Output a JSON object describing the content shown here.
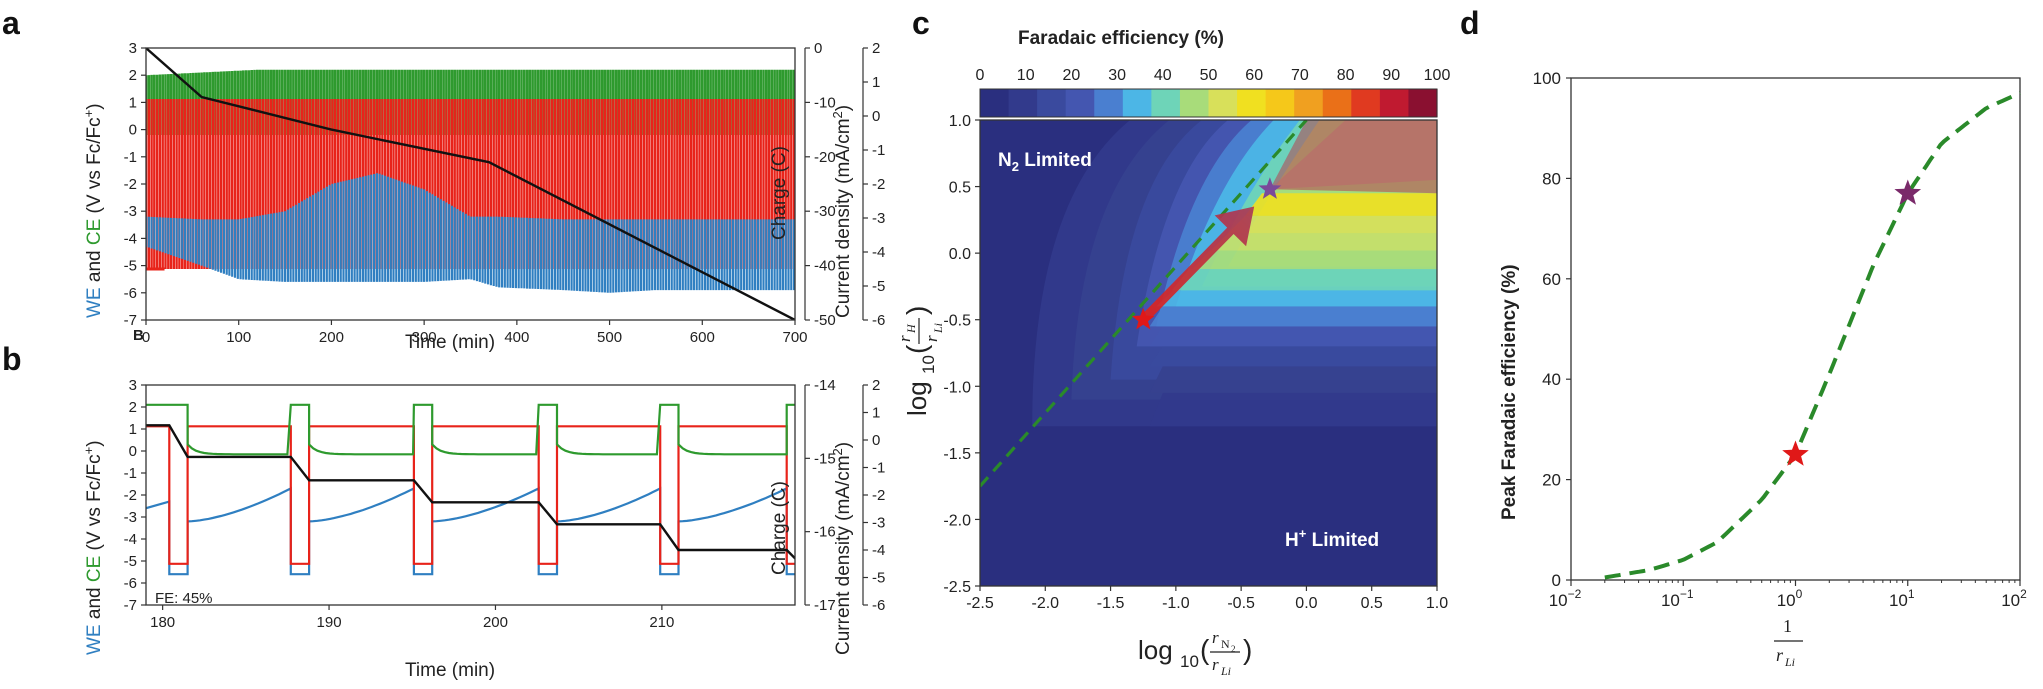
{
  "figure": {
    "panel_letters": [
      "a",
      "b",
      "c",
      "d"
    ],
    "colors": {
      "we": "#2f7fc1",
      "ce": "#2e9a2e",
      "current": "#e8231a",
      "charge": "#111111",
      "guide": "#2a8a2a",
      "star_red": "#e01818",
      "star_purple": "#7a2a6a"
    }
  },
  "chart_data": [
    {
      "panel": "a",
      "type": "line",
      "xlabel": "Time (min)",
      "ylabel_parts": [
        "WE",
        " and ",
        "CE",
        " (V vs Fc/Fc",
        "+",
        ")"
      ],
      "y2label": "Charge (C)",
      "y3label": "Current density (mA/cm",
      "y3label_sup": "2",
      "y3label_end": ")",
      "xlim": [
        0,
        700
      ],
      "ylim": [
        -7,
        3
      ],
      "y2lim": [
        -50,
        0
      ],
      "y3lim": [
        -6,
        2
      ],
      "x_ticks": [
        "0",
        "100",
        "200",
        "300",
        "400",
        "500",
        "600",
        "700"
      ],
      "y_ticks": [
        "3",
        "2",
        "1",
        "0",
        "-1",
        "-2",
        "-3",
        "-4",
        "-5",
        "-6",
        "-7"
      ],
      "y2_ticks": [
        "0",
        "-10",
        "-20",
        "-30",
        "-40",
        "-50"
      ],
      "y3_ticks": [
        "2",
        "1",
        "0",
        "-1",
        "-2",
        "-3",
        "-4",
        "-5",
        "-6"
      ],
      "inset_label": "B",
      "series": [
        {
          "name": "CE",
          "x": [
            0,
            60,
            120,
            380,
            700
          ],
          "upper": [
            2.0,
            2.1,
            2.2,
            2.2,
            2.2
          ],
          "lower": [
            -0.2,
            -0.2,
            -0.2,
            -0.2,
            -0.2
          ]
        },
        {
          "name": "Current density",
          "upper": [
            0.5,
            0.5,
            0.5,
            0.5,
            0.5
          ],
          "lower": [
            -4.5,
            -4.5,
            -4.5,
            -4.5,
            -4.5
          ]
        },
        {
          "name": "WE",
          "x": [
            0,
            60,
            100,
            150,
            200,
            250,
            300,
            350,
            380,
            450,
            500,
            550,
            600,
            650,
            700
          ],
          "upper": [
            -3.2,
            -3.3,
            -3.3,
            -3.0,
            -2.0,
            -1.6,
            -2.2,
            -3.2,
            -3.2,
            -3.3,
            -3.3,
            -3.3,
            -3.3,
            -3.3,
            -3.3
          ],
          "lower": [
            -4.3,
            -5.0,
            -5.5,
            -5.6,
            -5.6,
            -5.6,
            -5.6,
            -5.5,
            -5.8,
            -5.9,
            -6.0,
            -5.9,
            -5.9,
            -5.9,
            -5.9
          ]
        },
        {
          "name": "Charge",
          "x": [
            0,
            60,
            200,
            370,
            700
          ],
          "y": [
            0,
            -9,
            -15,
            -21,
            -50
          ]
        }
      ]
    },
    {
      "panel": "b",
      "type": "line",
      "xlabel": "Time (min)",
      "ylabel_parts": [
        "WE",
        " and ",
        "CE",
        " (V vs Fc/Fc",
        "+",
        ")"
      ],
      "y2label": "Charge (C)",
      "y3label": "Current density (mA/cm",
      "y3label_sup": "2",
      "y3label_end": ")",
      "xlim": [
        179,
        218
      ],
      "ylim": [
        -7,
        3
      ],
      "y2lim": [
        -17,
        -14
      ],
      "y3lim": [
        -6,
        2
      ],
      "x_ticks": [
        "180",
        "190",
        "200",
        "210"
      ],
      "x_tick_values": [
        180,
        190,
        200,
        210
      ],
      "y_ticks": [
        "3",
        "2",
        "1",
        "0",
        "-1",
        "-2",
        "-3",
        "-4",
        "-5",
        "-6",
        "-7"
      ],
      "y2_ticks": [
        "-14",
        "-15",
        "-16",
        "-17"
      ],
      "y3_ticks": [
        "2",
        "1",
        "0",
        "-1",
        "-2",
        "-3",
        "-4",
        "-5",
        "-6"
      ],
      "annotation": "FE: 45%",
      "pulse_starts": [
        180.4,
        187.7,
        195.1,
        202.6,
        209.9,
        217.5
      ],
      "pulse_width": 1.1,
      "charge_steps": [
        -14.55,
        -14.98,
        -15.3,
        -15.6,
        -15.9,
        -16.25,
        -16.5
      ]
    },
    {
      "panel": "c",
      "type": "heatmap",
      "title": "Faradaic efficiency (%)",
      "colorbar_ticks": [
        "0",
        "10",
        "20",
        "30",
        "40",
        "50",
        "60",
        "70",
        "80",
        "90",
        "100"
      ],
      "colorbar_colors": [
        "#2a2f7f",
        "#323a8c",
        "#3a4a9e",
        "#4456b0",
        "#4a7fd0",
        "#4cb6e6",
        "#6ed4b8",
        "#a8dc7a",
        "#d8e05a",
        "#f0e020",
        "#f5c81a",
        "#f0a020",
        "#ea7018",
        "#e03a20",
        "#c01a30",
        "#8a1030"
      ],
      "xlim": [
        -2.5,
        1.0
      ],
      "ylim": [
        -2.5,
        1.0
      ],
      "x_ticks": [
        "-2.5",
        "-2.0",
        "-1.5",
        "-1.0",
        "-0.5",
        "0.0",
        "0.5",
        "1.0"
      ],
      "y_ticks": [
        "1.0",
        "0.5",
        "0.0",
        "-0.5",
        "-1.0",
        "-1.5",
        "-2.0",
        "-2.5"
      ],
      "xlabel_main": "log",
      "xlabel_sub10": "10",
      "xlabel_num": "r",
      "xlabel_num_sub": "N",
      "xlabel_num_sub2": "2",
      "xlabel_den": "r",
      "xlabel_den_sub": "Li",
      "ylabel_main": "log",
      "ylabel_sub10": "10",
      "ylabel_num": "r",
      "ylabel_num_sub": "H",
      "ylabel_den": "r",
      "ylabel_den_sub": "Li",
      "region_labels": {
        "top_left": "N",
        "top_left_sub": "2",
        "top_left_end": " Limited",
        "bottom_right": "H",
        "bottom_right_sup": "+",
        "bottom_right_end": " Limited"
      },
      "markers": [
        {
          "name": "red-star",
          "x": -1.25,
          "y": -0.5
        },
        {
          "name": "purple-star",
          "x": -0.28,
          "y": 0.48
        }
      ],
      "guide_line": {
        "x": [
          -2.5,
          0.0
        ],
        "y": [
          -1.75,
          1.0
        ]
      }
    },
    {
      "panel": "d",
      "type": "line",
      "ylabel": "Peak Faradaic efficiency (%)",
      "xlabel_num": "1",
      "xlabel_den": "r",
      "xlabel_den_sub": "Li",
      "xscale": "log",
      "xlim": [
        0.01,
        100
      ],
      "ylim": [
        0,
        100
      ],
      "x_tick_bases": [
        "10",
        "10",
        "10",
        "10",
        "10"
      ],
      "x_tick_exps": [
        "−2",
        "−1",
        "0",
        "1",
        "2"
      ],
      "y_ticks": [
        "0",
        "20",
        "40",
        "60",
        "80",
        "100"
      ],
      "series": [
        {
          "name": "",
          "x": [
            0.02,
            0.05,
            0.1,
            0.2,
            0.5,
            1,
            2,
            5,
            10,
            20,
            50,
            100
          ],
          "y": [
            0.5,
            2,
            4,
            7.5,
            16,
            25,
            41,
            63,
            77,
            87,
            94,
            97
          ]
        }
      ],
      "markers": [
        {
          "name": "red-star",
          "x": 1,
          "y": 25
        },
        {
          "name": "purple-star",
          "x": 10,
          "y": 77
        }
      ]
    }
  ]
}
